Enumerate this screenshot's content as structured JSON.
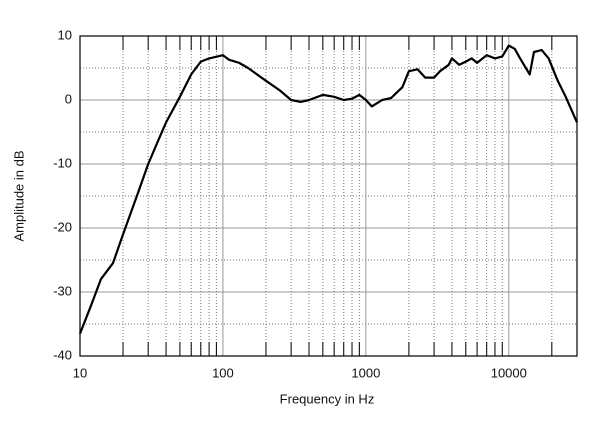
{
  "chart_data": {
    "type": "line",
    "x_label": "Frequency in Hz",
    "y_label": "Amplitude in dB",
    "xscale": "log",
    "xlim": [
      10,
      30000
    ],
    "xticks": [
      10,
      100,
      1000,
      10000
    ],
    "ylim": [
      -40,
      10
    ],
    "yticks": [
      -40,
      -30,
      -20,
      -10,
      0,
      10
    ],
    "grid": true,
    "series": [
      {
        "color": "#000000",
        "x": [
          10,
          12,
          14,
          17,
          20,
          25,
          30,
          35,
          40,
          50,
          60,
          70,
          80,
          100,
          110,
          130,
          150,
          200,
          250,
          300,
          350,
          400,
          500,
          600,
          700,
          800,
          900,
          1000,
          1100,
          1300,
          1500,
          1800,
          2000,
          2300,
          2600,
          3000,
          3300,
          3800,
          4000,
          4500,
          5000,
          5500,
          6000,
          7000,
          8000,
          9000,
          10000,
          11000,
          12000,
          14000,
          15000,
          17000,
          19000,
          22000,
          25000,
          30000
        ],
        "values": [
          -36.5,
          -32,
          -28,
          -25.5,
          -21,
          -15,
          -10,
          -6.5,
          -3.5,
          0.5,
          4,
          6,
          6.5,
          7,
          6.3,
          5.8,
          5,
          3,
          1.5,
          0,
          -0.3,
          0,
          0.8,
          0.5,
          0,
          0.2,
          0.8,
          0,
          -1,
          0,
          0.3,
          2,
          4.5,
          4.8,
          3.5,
          3.5,
          4.5,
          5.5,
          6.5,
          5.5,
          6,
          6.5,
          5.8,
          7,
          6.5,
          6.8,
          8.5,
          8,
          6.5,
          4,
          7.5,
          7.8,
          6.5,
          3,
          0.5,
          -3.5
        ]
      }
    ]
  }
}
